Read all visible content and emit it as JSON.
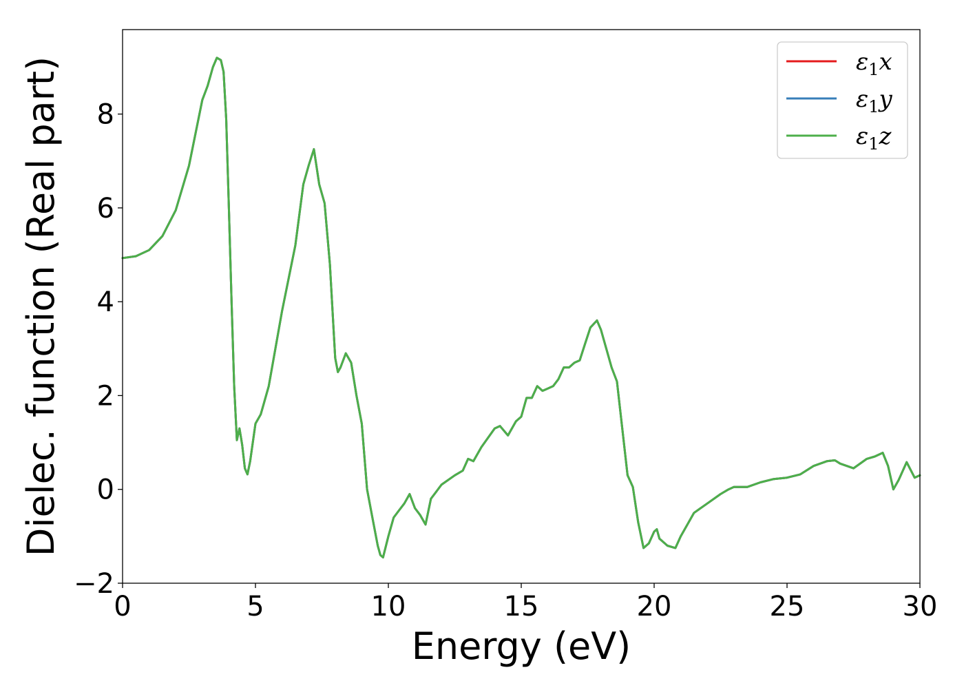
{
  "chart_data": {
    "type": "line",
    "title": "",
    "xlabel": "Energy (eV)",
    "ylabel": "Dielec. function (Real part)",
    "xlim": [
      0,
      30
    ],
    "ylim": [
      -2,
      9.8
    ],
    "xticks": [
      0,
      5,
      10,
      15,
      20,
      25,
      30
    ],
    "yticks": [
      -2,
      0,
      2,
      4,
      6,
      8
    ],
    "xtick_labels": [
      "0",
      "5",
      "10",
      "15",
      "20",
      "25",
      "30"
    ],
    "ytick_labels": [
      "−2",
      "0",
      "2",
      "4",
      "6",
      "8"
    ],
    "grid": false,
    "legend": {
      "placement": "top-right",
      "entries": [
        {
          "base": "ε",
          "sub": "1",
          "suffix": "x",
          "color": "#e41a1c"
        },
        {
          "base": "ε",
          "sub": "1",
          "suffix": "y",
          "color": "#377eb8"
        },
        {
          "base": "ε",
          "sub": "1",
          "suffix": "z",
          "color": "#4daf4a"
        }
      ]
    },
    "x": [
      0,
      0.5,
      1,
      1.5,
      2,
      2.5,
      3,
      3.2,
      3.4,
      3.55,
      3.7,
      3.8,
      3.9,
      4.0,
      4.1,
      4.2,
      4.3,
      4.4,
      4.5,
      4.6,
      4.7,
      4.8,
      5.0,
      5.2,
      5.5,
      6.0,
      6.5,
      6.8,
      7.0,
      7.2,
      7.4,
      7.6,
      7.8,
      8.0,
      8.1,
      8.2,
      8.4,
      8.6,
      8.8,
      9.0,
      9.2,
      9.4,
      9.6,
      9.7,
      9.8,
      10.0,
      10.2,
      10.4,
      10.6,
      10.8,
      11.0,
      11.2,
      11.4,
      11.6,
      12.0,
      12.5,
      12.8,
      13.0,
      13.2,
      13.5,
      14.0,
      14.2,
      14.5,
      14.8,
      15.0,
      15.2,
      15.4,
      15.6,
      15.8,
      16.0,
      16.2,
      16.4,
      16.6,
      16.8,
      17.0,
      17.2,
      17.4,
      17.6,
      17.85,
      18.0,
      18.2,
      18.4,
      18.6,
      18.8,
      19.0,
      19.2,
      19.4,
      19.6,
      19.8,
      20.0,
      20.1,
      20.2,
      20.5,
      20.8,
      21.0,
      21.5,
      22.0,
      22.5,
      22.8,
      23.0,
      23.5,
      24.0,
      24.5,
      25.0,
      25.5,
      26.0,
      26.5,
      26.8,
      27.0,
      27.5,
      28.0,
      28.3,
      28.6,
      28.8,
      29.0,
      29.2,
      29.5,
      29.8,
      30.0
    ],
    "series": [
      {
        "name": "",
        "color": "#e41a1c",
        "values": [
          4.93,
          4.97,
          5.1,
          5.4,
          5.95,
          6.9,
          8.3,
          8.6,
          9.0,
          9.2,
          9.15,
          8.9,
          7.9,
          6.0,
          4.0,
          2.2,
          1.05,
          1.3,
          0.95,
          0.45,
          0.32,
          0.6,
          1.4,
          1.6,
          2.2,
          3.8,
          5.2,
          6.5,
          6.9,
          7.25,
          6.5,
          6.1,
          4.8,
          2.8,
          2.5,
          2.6,
          2.9,
          2.7,
          2.0,
          1.4,
          0.0,
          -0.6,
          -1.2,
          -1.4,
          -1.45,
          -1.0,
          -0.6,
          -0.45,
          -0.3,
          -0.1,
          -0.4,
          -0.55,
          -0.75,
          -0.2,
          0.1,
          0.3,
          0.4,
          0.65,
          0.6,
          0.9,
          1.3,
          1.35,
          1.15,
          1.45,
          1.55,
          1.95,
          1.95,
          2.2,
          2.1,
          2.15,
          2.2,
          2.35,
          2.6,
          2.6,
          2.7,
          2.75,
          3.1,
          3.45,
          3.6,
          3.4,
          3.0,
          2.6,
          2.3,
          1.3,
          0.3,
          0.05,
          -0.7,
          -1.25,
          -1.15,
          -0.9,
          -0.85,
          -1.05,
          -1.2,
          -1.25,
          -1.0,
          -0.5,
          -0.3,
          -0.1,
          0.0,
          0.05,
          0.05,
          0.15,
          0.22,
          0.25,
          0.32,
          0.5,
          0.6,
          0.62,
          0.55,
          0.45,
          0.65,
          0.7,
          0.78,
          0.5,
          0.0,
          0.2,
          0.58,
          0.25,
          0.3
        ]
      },
      {
        "name": "",
        "color": "#377eb8",
        "values": [
          4.93,
          4.97,
          5.1,
          5.4,
          5.95,
          6.9,
          8.3,
          8.6,
          9.0,
          9.2,
          9.15,
          8.9,
          7.9,
          6.0,
          4.0,
          2.2,
          1.05,
          1.3,
          0.95,
          0.45,
          0.32,
          0.6,
          1.4,
          1.6,
          2.2,
          3.8,
          5.2,
          6.5,
          6.9,
          7.25,
          6.5,
          6.1,
          4.8,
          2.8,
          2.5,
          2.6,
          2.9,
          2.7,
          2.0,
          1.4,
          0.0,
          -0.6,
          -1.2,
          -1.4,
          -1.45,
          -1.0,
          -0.6,
          -0.45,
          -0.3,
          -0.1,
          -0.4,
          -0.55,
          -0.75,
          -0.2,
          0.1,
          0.3,
          0.4,
          0.65,
          0.6,
          0.9,
          1.3,
          1.35,
          1.15,
          1.45,
          1.55,
          1.95,
          1.95,
          2.2,
          2.1,
          2.15,
          2.2,
          2.35,
          2.6,
          2.6,
          2.7,
          2.75,
          3.1,
          3.45,
          3.6,
          3.4,
          3.0,
          2.6,
          2.3,
          1.3,
          0.3,
          0.05,
          -0.7,
          -1.25,
          -1.15,
          -0.9,
          -0.85,
          -1.05,
          -1.2,
          -1.25,
          -1.0,
          -0.5,
          -0.3,
          -0.1,
          0.0,
          0.05,
          0.05,
          0.15,
          0.22,
          0.25,
          0.32,
          0.5,
          0.6,
          0.62,
          0.55,
          0.45,
          0.65,
          0.7,
          0.78,
          0.5,
          0.0,
          0.2,
          0.58,
          0.25,
          0.3
        ]
      },
      {
        "name": "",
        "color": "#4daf4a",
        "values": [
          4.93,
          4.97,
          5.1,
          5.4,
          5.95,
          6.9,
          8.3,
          8.6,
          9.0,
          9.2,
          9.15,
          8.9,
          7.9,
          6.0,
          4.0,
          2.2,
          1.05,
          1.3,
          0.95,
          0.45,
          0.32,
          0.6,
          1.4,
          1.6,
          2.2,
          3.8,
          5.2,
          6.5,
          6.9,
          7.25,
          6.5,
          6.1,
          4.8,
          2.8,
          2.5,
          2.6,
          2.9,
          2.7,
          2.0,
          1.4,
          0.0,
          -0.6,
          -1.2,
          -1.4,
          -1.45,
          -1.0,
          -0.6,
          -0.45,
          -0.3,
          -0.1,
          -0.4,
          -0.55,
          -0.75,
          -0.2,
          0.1,
          0.3,
          0.4,
          0.65,
          0.6,
          0.9,
          1.3,
          1.35,
          1.15,
          1.45,
          1.55,
          1.95,
          1.95,
          2.2,
          2.1,
          2.15,
          2.2,
          2.35,
          2.6,
          2.6,
          2.7,
          2.75,
          3.1,
          3.45,
          3.6,
          3.4,
          3.0,
          2.6,
          2.3,
          1.3,
          0.3,
          0.05,
          -0.7,
          -1.25,
          -1.15,
          -0.9,
          -0.85,
          -1.05,
          -1.2,
          -1.25,
          -1.0,
          -0.5,
          -0.3,
          -0.1,
          0.0,
          0.05,
          0.05,
          0.15,
          0.22,
          0.25,
          0.32,
          0.5,
          0.6,
          0.62,
          0.55,
          0.45,
          0.65,
          0.7,
          0.78,
          0.5,
          0.0,
          0.2,
          0.58,
          0.25,
          0.3
        ]
      }
    ]
  }
}
